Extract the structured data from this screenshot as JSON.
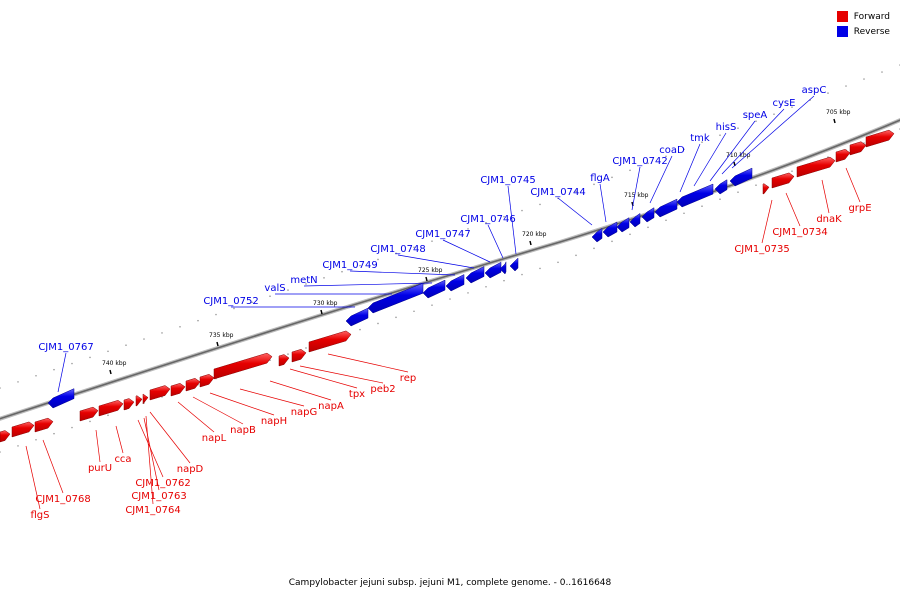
{
  "legend": [
    {
      "label": "Forward",
      "color": "#e60000"
    },
    {
      "label": "Reverse",
      "color": "#0000e6"
    }
  ],
  "caption": "Campylobacter jejuni subsp. jejuni M1, complete genome. - 0..1616648",
  "colors": {
    "forward": "#e60000",
    "reverse": "#0000e6",
    "backbone": "#777777"
  },
  "ticks": [
    "705 kbp",
    "710 kbp",
    "715 kbp",
    "720 kbp",
    "725 kbp",
    "730 kbp",
    "735 kbp",
    "740 kbp"
  ],
  "genes": [
    {
      "label": "aspC",
      "strand": "reverse"
    },
    {
      "label": "cysE",
      "strand": "reverse"
    },
    {
      "label": "speA",
      "strand": "reverse"
    },
    {
      "label": "hisS",
      "strand": "reverse"
    },
    {
      "label": "tmk",
      "strand": "reverse"
    },
    {
      "label": "coaD",
      "strand": "reverse"
    },
    {
      "label": "CJM1_0742",
      "strand": "reverse"
    },
    {
      "label": "flgA",
      "strand": "reverse"
    },
    {
      "label": "CJM1_0744",
      "strand": "reverse"
    },
    {
      "label": "CJM1_0745",
      "strand": "reverse"
    },
    {
      "label": "CJM1_0746",
      "strand": "reverse"
    },
    {
      "label": "CJM1_0747",
      "strand": "reverse"
    },
    {
      "label": "CJM1_0748",
      "strand": "reverse"
    },
    {
      "label": "CJM1_0749",
      "strand": "reverse"
    },
    {
      "label": "metN",
      "strand": "reverse"
    },
    {
      "label": "valS",
      "strand": "reverse"
    },
    {
      "label": "CJM1_0752",
      "strand": "reverse"
    },
    {
      "label": "CJM1_0767",
      "strand": "reverse"
    },
    {
      "label": "grpE",
      "strand": "forward"
    },
    {
      "label": "dnaK",
      "strand": "forward"
    },
    {
      "label": "CJM1_0734",
      "strand": "forward"
    },
    {
      "label": "CJM1_0735",
      "strand": "forward"
    },
    {
      "label": "rep",
      "strand": "forward"
    },
    {
      "label": "peb2",
      "strand": "forward"
    },
    {
      "label": "tpx",
      "strand": "forward"
    },
    {
      "label": "napA",
      "strand": "forward"
    },
    {
      "label": "napG",
      "strand": "forward"
    },
    {
      "label": "napH",
      "strand": "forward"
    },
    {
      "label": "napB",
      "strand": "forward"
    },
    {
      "label": "napL",
      "strand": "forward"
    },
    {
      "label": "napD",
      "strand": "forward"
    },
    {
      "label": "purU",
      "strand": "forward"
    },
    {
      "label": "cca",
      "strand": "forward"
    },
    {
      "label": "CJM1_0762",
      "strand": "forward"
    },
    {
      "label": "CJM1_0763",
      "strand": "forward"
    },
    {
      "label": "CJM1_0764",
      "strand": "forward"
    },
    {
      "label": "CJM1_0768",
      "strand": "forward"
    },
    {
      "label": "flgS",
      "strand": "forward"
    }
  ]
}
